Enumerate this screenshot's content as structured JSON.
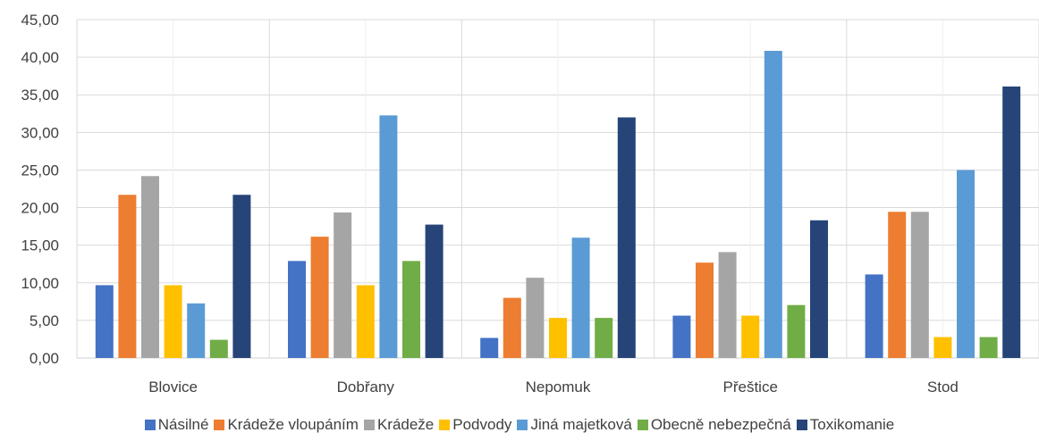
{
  "chart_data": {
    "type": "bar",
    "title": "",
    "xlabel": "",
    "ylabel": "",
    "ylim": [
      0,
      45
    ],
    "ytick_step": 5,
    "ytick_labels": [
      "0,00",
      "5,00",
      "10,00",
      "15,00",
      "20,00",
      "25,00",
      "30,00",
      "35,00",
      "40,00",
      "45,00"
    ],
    "grid": true,
    "legend_position": "bottom",
    "categories": [
      "Blovice",
      "Dobřany",
      "Nepomuk",
      "Přeštice",
      "Stod"
    ],
    "series": [
      {
        "name": "Násilné",
        "color": "#4472C4",
        "values": [
          9.68,
          12.9,
          2.67,
          5.63,
          11.11
        ]
      },
      {
        "name": "Krádeže vloupáním",
        "color": "#ED7D31",
        "values": [
          21.7,
          16.13,
          8.0,
          12.68,
          19.44
        ]
      },
      {
        "name": "Krádeže",
        "color": "#A5A5A5",
        "values": [
          24.19,
          19.35,
          10.67,
          14.08,
          19.44
        ]
      },
      {
        "name": "Podvody",
        "color": "#FFC000",
        "values": [
          9.68,
          9.68,
          5.33,
          5.63,
          2.78
        ]
      },
      {
        "name": "Jiná majetková",
        "color": "#5B9BD5",
        "values": [
          7.26,
          32.26,
          16.0,
          40.85,
          25.0
        ]
      },
      {
        "name": "Obecně nebezpečná",
        "color": "#70AD47",
        "values": [
          2.42,
          12.9,
          5.33,
          7.04,
          2.78
        ]
      },
      {
        "name": "Toxikomanie",
        "color": "#264478",
        "values": [
          21.7,
          17.74,
          32.0,
          18.31,
          36.11
        ]
      }
    ]
  }
}
